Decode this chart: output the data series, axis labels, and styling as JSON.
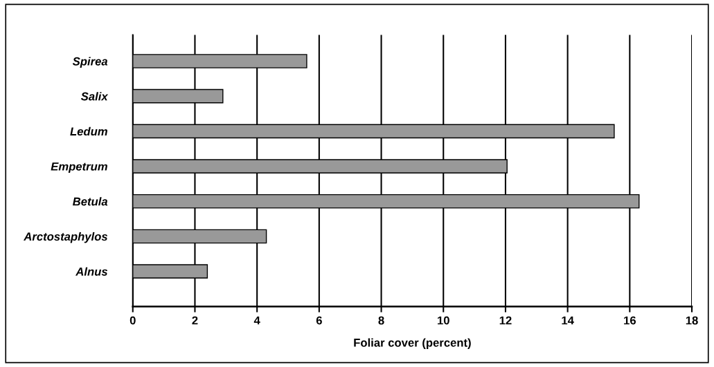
{
  "chart_data": {
    "type": "bar",
    "orientation": "horizontal",
    "categories": [
      "Spirea",
      "Salix",
      "Ledum",
      "Empetrum",
      "Betula",
      "Arctostaphylos",
      "Alnus"
    ],
    "values": [
      5.6,
      2.9,
      15.5,
      12.05,
      16.3,
      4.3,
      2.4
    ],
    "color": "#999999",
    "xlabel": "Foliar cover (percent)",
    "xlim": [
      0,
      18
    ],
    "xticks": [
      0,
      2,
      4,
      6,
      8,
      10,
      12,
      14,
      16,
      18
    ],
    "grid": "x"
  }
}
